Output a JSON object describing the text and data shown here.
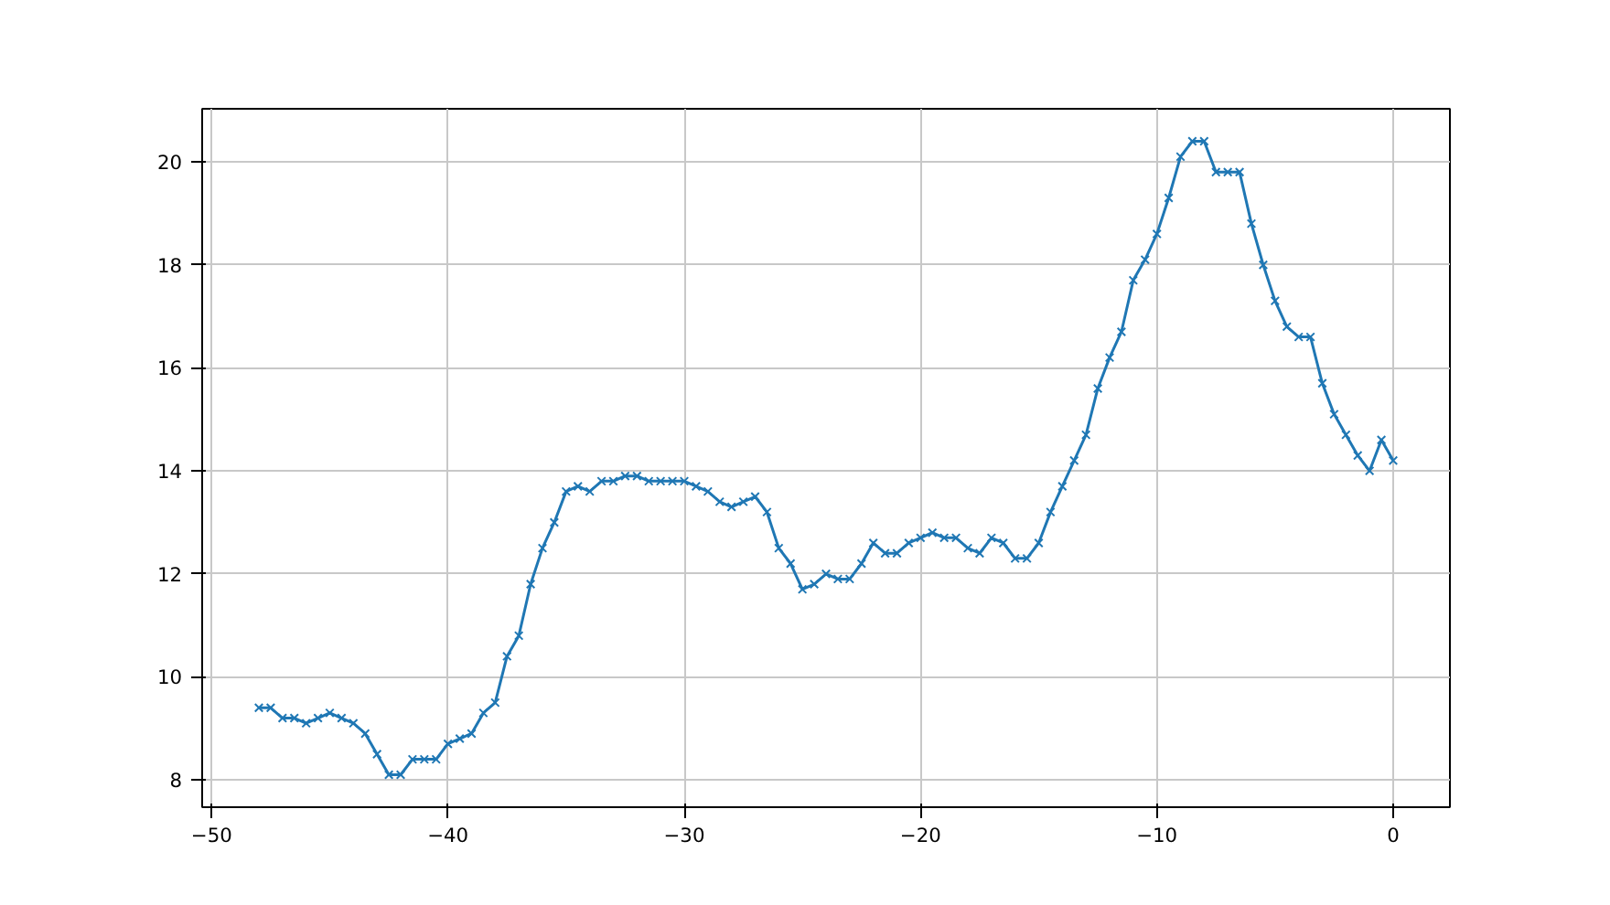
{
  "chart_data": {
    "type": "line",
    "x": [
      -48,
      -47.5,
      -47,
      -46.5,
      -46,
      -45.5,
      -45,
      -44.5,
      -44,
      -43.5,
      -43,
      -42.5,
      -42,
      -41.5,
      -41,
      -40.5,
      -40,
      -39.5,
      -39,
      -38.5,
      -38,
      -37.5,
      -37,
      -36.5,
      -36,
      -35.5,
      -35,
      -34.5,
      -34,
      -33.5,
      -33,
      -32.5,
      -32,
      -31.5,
      -31,
      -30.5,
      -30,
      -29.5,
      -29,
      -28.5,
      -28,
      -27.5,
      -27,
      -26.5,
      -26,
      -25.5,
      -25,
      -24.5,
      -24,
      -23.5,
      -23,
      -22.5,
      -22,
      -21.5,
      -21,
      -20.5,
      -20,
      -19.5,
      -19,
      -18.5,
      -18,
      -17.5,
      -17,
      -16.5,
      -16,
      -15.5,
      -15,
      -14.5,
      -14,
      -13.5,
      -13,
      -12.5,
      -12,
      -11.5,
      -11,
      -10.5,
      -10,
      -9.5,
      -9,
      -8.5,
      -8,
      -7.5,
      -7,
      -6.5,
      -6,
      -5.5,
      -5,
      -4.5,
      -4,
      -3.5,
      -3,
      -2.5,
      -2,
      -1.5,
      -1,
      -0.5,
      0
    ],
    "series": [
      {
        "color": "#1f77b4",
        "values": [
          9.4,
          9.4,
          9.2,
          9.2,
          9.1,
          9.2,
          9.3,
          9.2,
          9.1,
          8.9,
          8.5,
          8.1,
          8.1,
          8.4,
          8.4,
          8.4,
          8.7,
          8.8,
          8.9,
          9.3,
          9.5,
          10.4,
          10.8,
          11.8,
          12.5,
          13.0,
          13.6,
          13.7,
          13.6,
          13.8,
          13.8,
          13.9,
          13.9,
          13.8,
          13.8,
          13.8,
          13.8,
          13.7,
          13.6,
          13.4,
          13.3,
          13.4,
          13.5,
          13.2,
          12.5,
          12.2,
          11.7,
          11.8,
          12.0,
          11.9,
          11.9,
          12.2,
          12.6,
          12.4,
          12.4,
          12.6,
          12.7,
          12.8,
          12.7,
          12.7,
          12.5,
          12.4,
          12.7,
          12.6,
          12.3,
          12.3,
          12.6,
          13.2,
          13.7,
          14.2,
          14.7,
          15.6,
          16.2,
          16.7,
          17.7,
          18.1,
          18.6,
          19.3,
          20.1,
          20.4,
          20.4,
          19.8,
          19.8,
          19.8,
          18.8,
          18.0,
          17.3,
          16.8,
          16.6,
          16.6,
          15.7,
          15.1,
          14.7,
          14.3,
          14.0,
          14.6,
          14.2
        ]
      }
    ],
    "xlim": [
      -50.4,
      2.4
    ],
    "ylim": [
      7.47,
      21.03
    ],
    "xticks": [
      -50,
      -40,
      -30,
      -20,
      -10,
      0
    ],
    "yticks": [
      8,
      10,
      12,
      14,
      16,
      18,
      20
    ],
    "grid": true,
    "marker": "cross",
    "line_style": "solid"
  }
}
